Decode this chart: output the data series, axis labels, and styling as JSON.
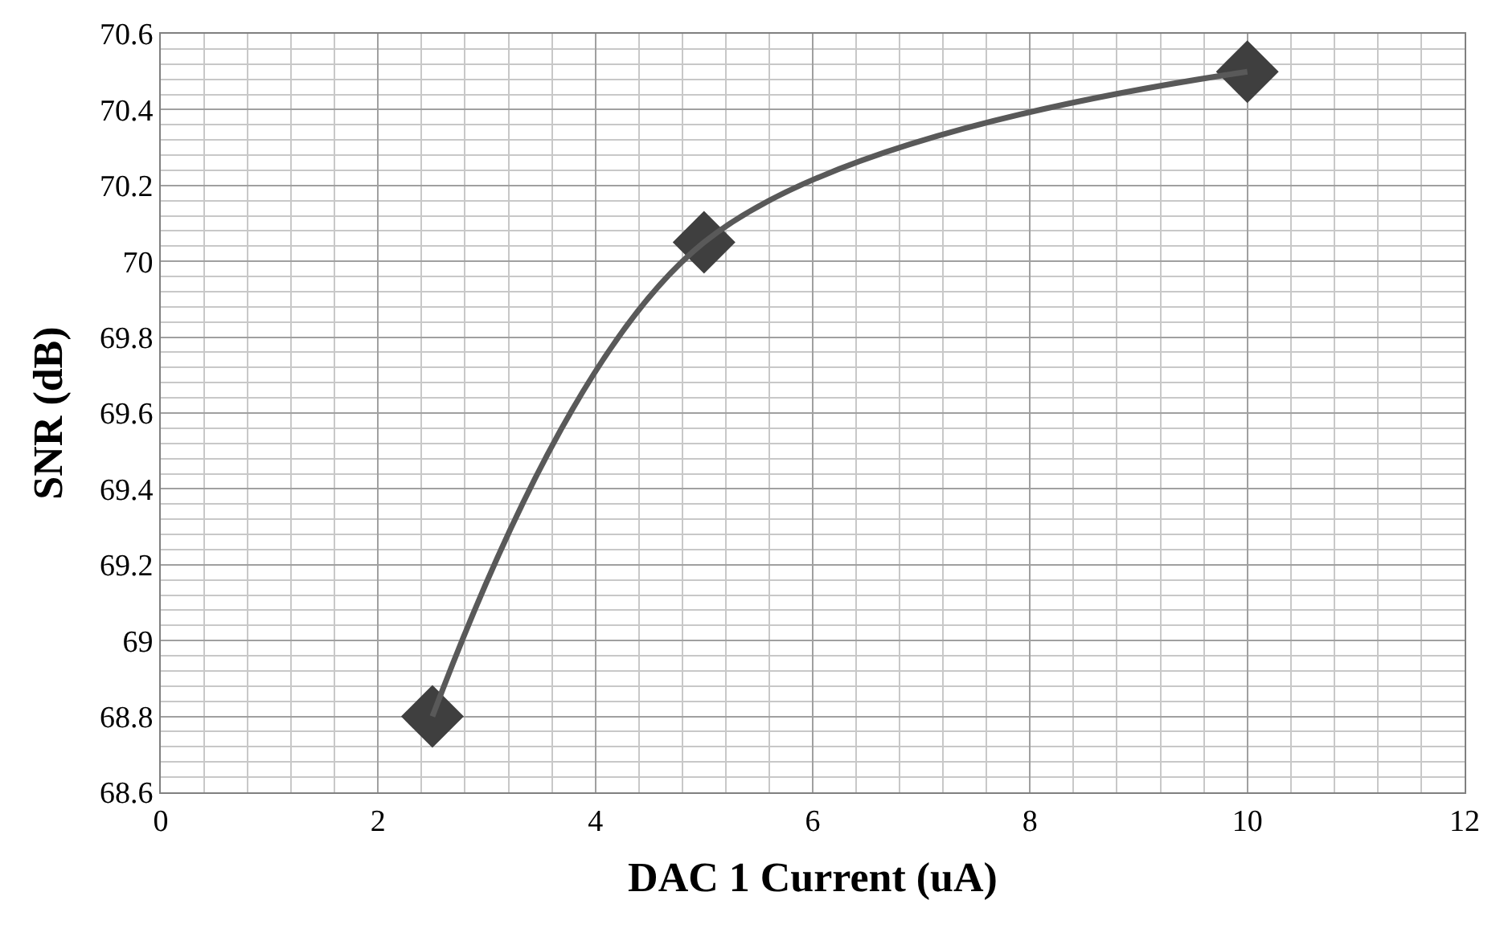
{
  "chart_data": {
    "type": "line",
    "xlabel": "DAC 1 Current (uA)",
    "ylabel": "SNR (dB)",
    "x": [
      2.5,
      5,
      10
    ],
    "series": [
      {
        "color": "#595959",
        "colors": [
          "#3f3f3f",
          "#3f3f3f",
          "#3f3f3f"
        ],
        "values": [
          68.8,
          70.05,
          70.5
        ]
      }
    ],
    "xlim": [
      0,
      12
    ],
    "xticks": [
      0,
      2,
      4,
      6,
      8,
      10,
      12
    ],
    "ylim": [
      68.6,
      70.6
    ],
    "yticks": [
      68.6,
      68.8,
      69,
      69.2,
      69.4,
      69.6,
      69.8,
      70,
      70.2,
      70.4,
      70.6
    ],
    "grid": true,
    "marker": "diamond",
    "line_style": "solid"
  }
}
